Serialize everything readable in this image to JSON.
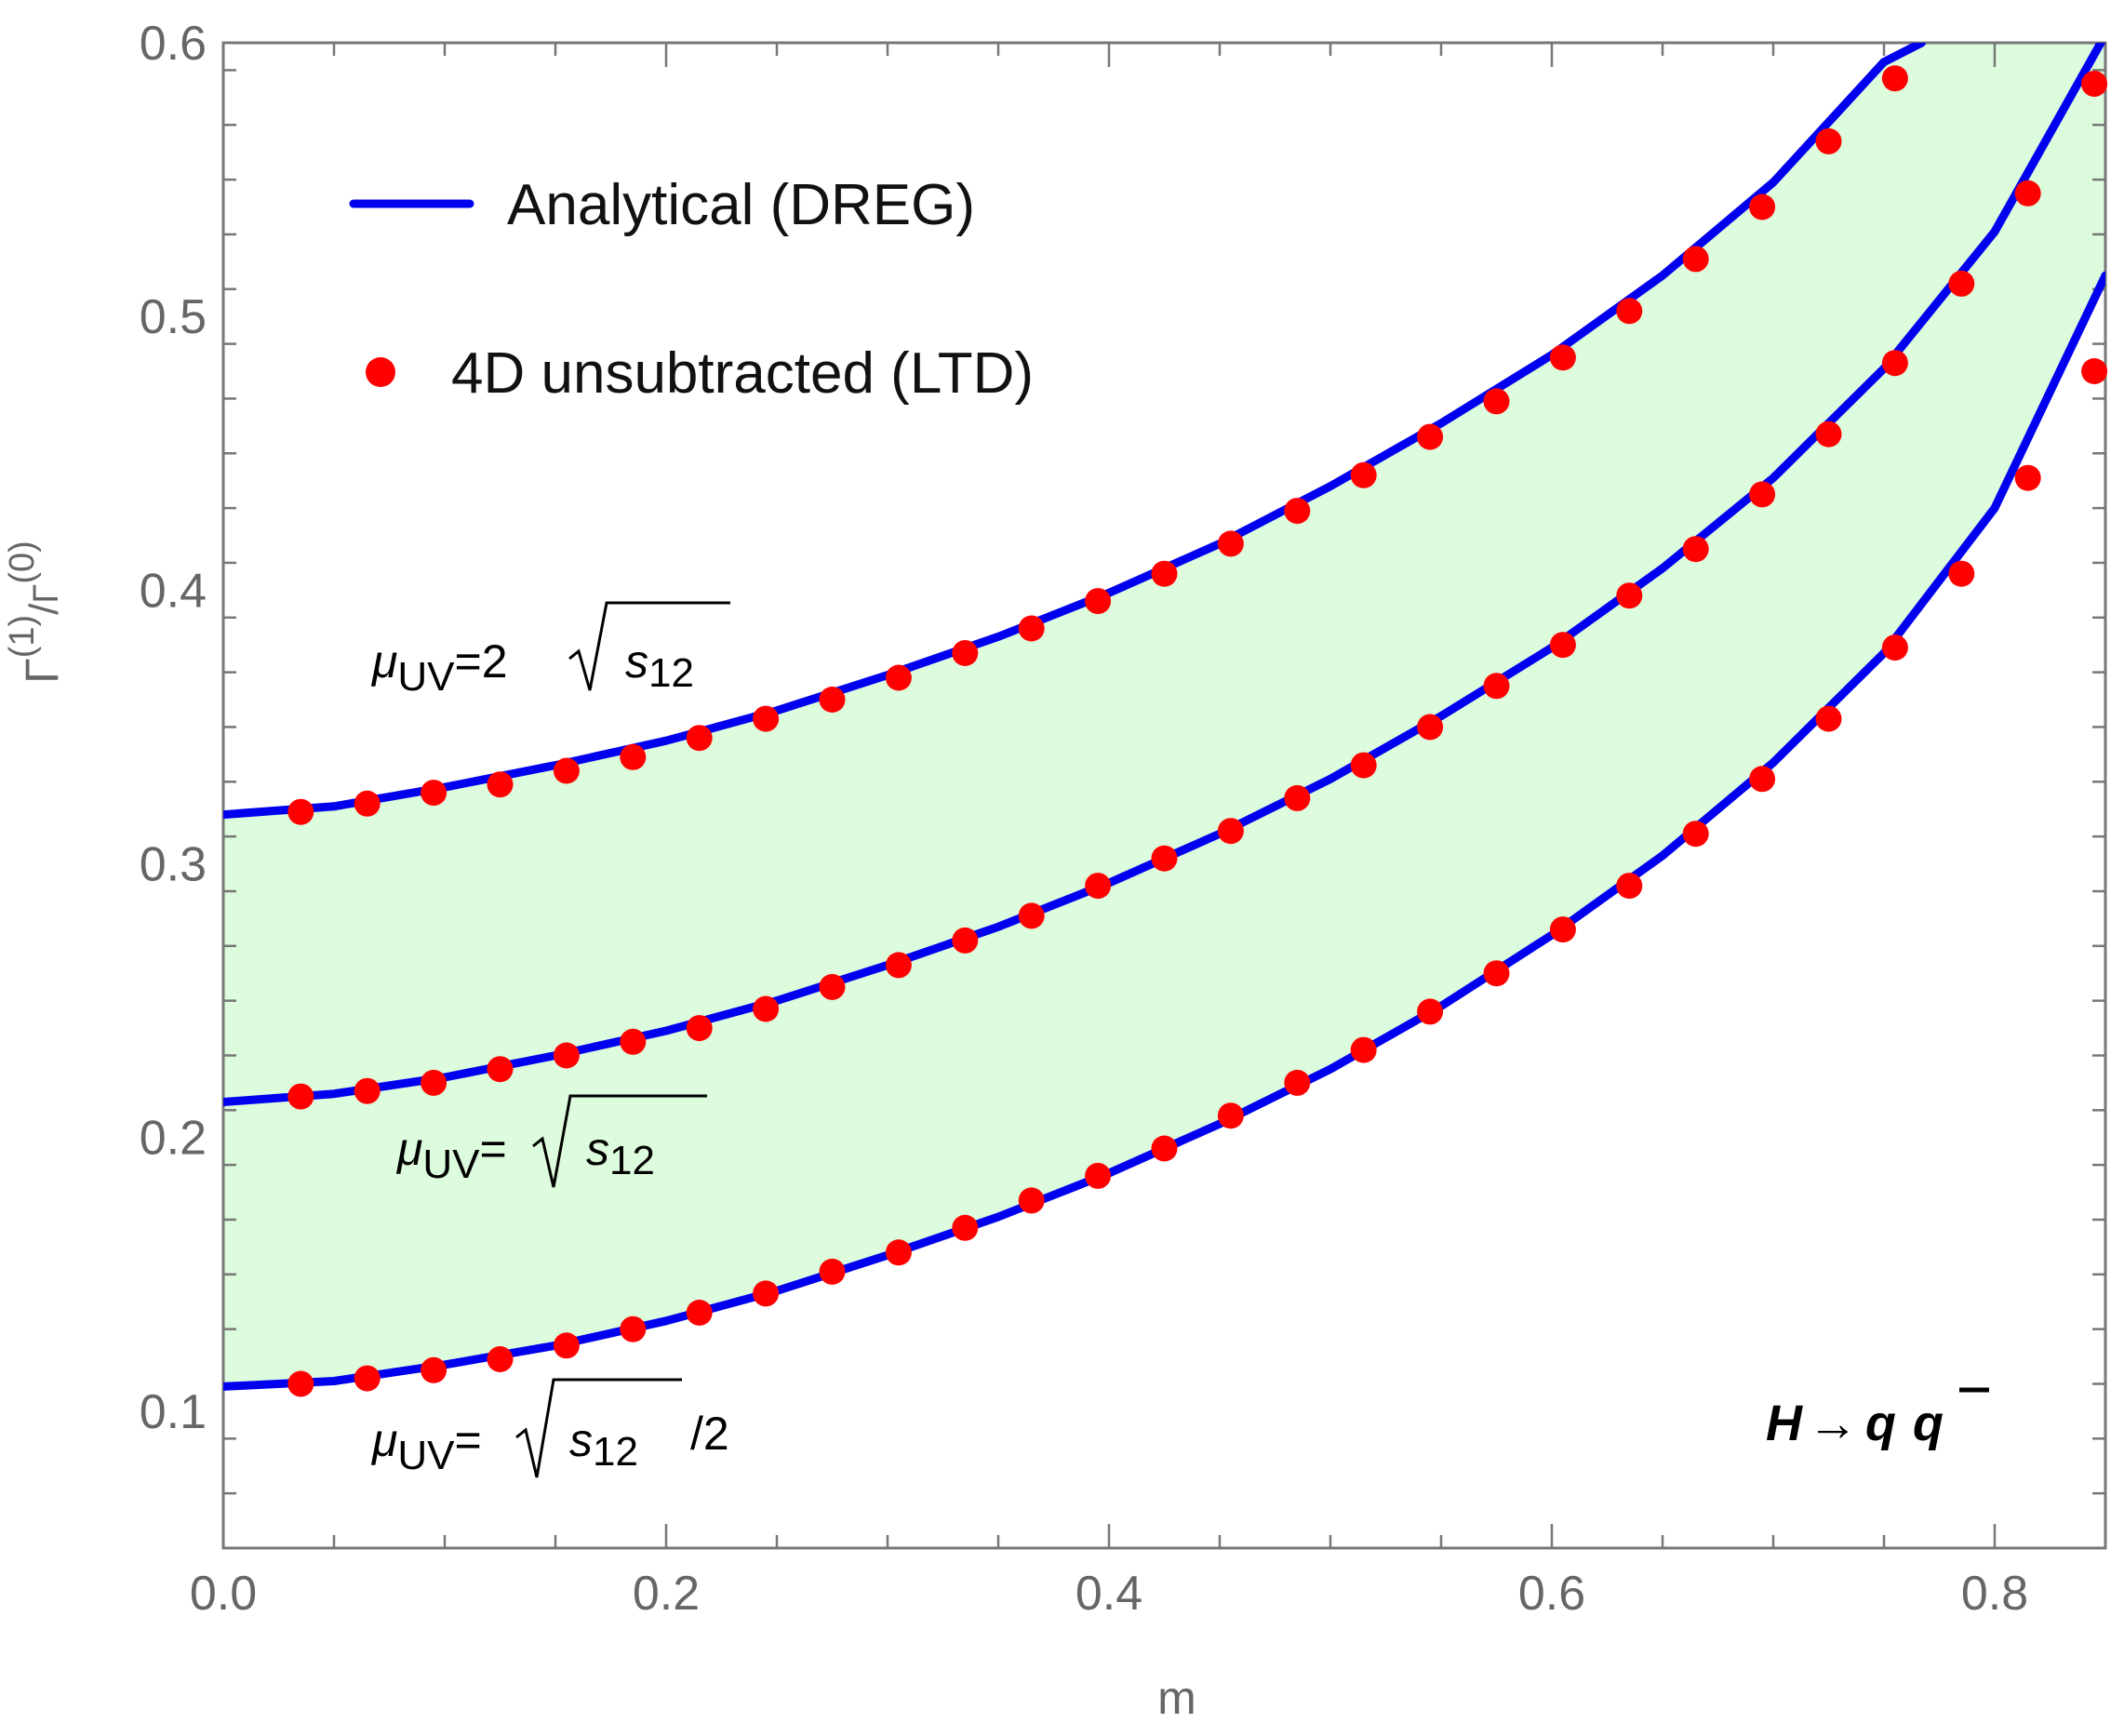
{
  "chart_data": {
    "type": "line",
    "xlabel": "m",
    "ylabel_base": "Γ",
    "ylabel_sup_num": "(1)",
    "ylabel_sep": "/",
    "ylabel_sup_den": "(0)",
    "xlim": [
      0.0,
      0.85
    ],
    "ylim": [
      0.05,
      0.6
    ],
    "x_ticks": [
      0.0,
      0.2,
      0.4,
      0.6,
      0.8
    ],
    "x_tick_labels": [
      "0.0",
      "0.2",
      "0.4",
      "0.6",
      "0.8"
    ],
    "y_ticks": [
      0.1,
      0.2,
      0.3,
      0.4,
      0.5,
      0.6
    ],
    "y_tick_labels": [
      "0.1",
      "0.2",
      "0.3",
      "0.4",
      "0.5",
      "0.6"
    ],
    "legend": {
      "line_label": "Analytical (DREG)",
      "marker_label": "4D unsubtracted (LTD)",
      "placement": "top-left"
    },
    "band_color": "#ddfbdd",
    "line_color": "#0000ee",
    "marker_color": "#ff0000",
    "process_label": "H → q q̄",
    "process_parts": {
      "H": "H",
      "arrow": "→",
      "q": "q",
      "qbar": "q"
    },
    "series": [
      {
        "name": "μUV=2√s12",
        "label_parts": {
          "mu": "μ",
          "sub": "UV",
          "eq": "=2",
          "s": "s",
          "s_sub": "12",
          "tail": ""
        },
        "curve_x": [
          0.0,
          0.05,
          0.1,
          0.15,
          0.2,
          0.25,
          0.3,
          0.35,
          0.4,
          0.45,
          0.5,
          0.55,
          0.6,
          0.65,
          0.7,
          0.75,
          0.767
        ],
        "curve_y": [
          0.318,
          0.321,
          0.328,
          0.336,
          0.345,
          0.356,
          0.369,
          0.383,
          0.399,
          0.417,
          0.438,
          0.461,
          0.486,
          0.515,
          0.549,
          0.593,
          0.6
        ],
        "points_x": [
          0.035,
          0.065,
          0.095,
          0.125,
          0.155,
          0.185,
          0.215,
          0.245,
          0.275,
          0.305,
          0.335,
          0.365,
          0.395,
          0.425,
          0.455,
          0.485,
          0.515,
          0.545,
          0.575,
          0.605,
          0.635,
          0.665,
          0.695,
          0.725,
          0.755
        ],
        "points_y": [
          0.319,
          0.322,
          0.326,
          0.329,
          0.334,
          0.339,
          0.346,
          0.353,
          0.36,
          0.368,
          0.377,
          0.386,
          0.396,
          0.406,
          0.417,
          0.429,
          0.442,
          0.456,
          0.469,
          0.485,
          0.502,
          0.521,
          0.54,
          0.564,
          0.587
        ]
      },
      {
        "name": "μUV=√s12",
        "label_parts": {
          "mu": "μ",
          "sub": "UV",
          "eq": "=",
          "s": "s",
          "s_sub": "12",
          "tail": ""
        },
        "curve_x": [
          0.0,
          0.05,
          0.1,
          0.15,
          0.2,
          0.25,
          0.3,
          0.35,
          0.4,
          0.45,
          0.5,
          0.55,
          0.6,
          0.65,
          0.7,
          0.75,
          0.8,
          0.85
        ],
        "curve_y": [
          0.213,
          0.216,
          0.222,
          0.23,
          0.239,
          0.25,
          0.263,
          0.277,
          0.293,
          0.311,
          0.331,
          0.354,
          0.379,
          0.408,
          0.441,
          0.481,
          0.531,
          0.603
        ],
        "points_x": [
          0.035,
          0.065,
          0.095,
          0.125,
          0.155,
          0.185,
          0.215,
          0.245,
          0.275,
          0.305,
          0.335,
          0.365,
          0.395,
          0.425,
          0.455,
          0.485,
          0.515,
          0.545,
          0.575,
          0.605,
          0.635,
          0.665,
          0.695,
          0.725,
          0.755,
          0.785,
          0.815,
          0.845
        ],
        "points_y": [
          0.215,
          0.217,
          0.22,
          0.225,
          0.23,
          0.235,
          0.24,
          0.247,
          0.255,
          0.263,
          0.272,
          0.281,
          0.292,
          0.302,
          0.312,
          0.324,
          0.336,
          0.35,
          0.365,
          0.38,
          0.398,
          0.415,
          0.435,
          0.457,
          0.483,
          0.512,
          0.545,
          0.585
        ]
      },
      {
        "name": "μUV=√s12/2",
        "label_parts": {
          "mu": "μ",
          "sub": "UV",
          "eq": "=",
          "s": "s",
          "s_sub": "12",
          "tail": "/2"
        },
        "curve_x": [
          0.0,
          0.05,
          0.1,
          0.15,
          0.2,
          0.25,
          0.3,
          0.35,
          0.4,
          0.45,
          0.5,
          0.55,
          0.6,
          0.65,
          0.7,
          0.75,
          0.8,
          0.85
        ],
        "curve_y": [
          0.109,
          0.111,
          0.117,
          0.124,
          0.133,
          0.144,
          0.157,
          0.171,
          0.187,
          0.205,
          0.225,
          0.248,
          0.274,
          0.303,
          0.337,
          0.377,
          0.43,
          0.515
        ],
        "points_x": [
          0.035,
          0.065,
          0.095,
          0.125,
          0.155,
          0.185,
          0.215,
          0.245,
          0.275,
          0.305,
          0.335,
          0.365,
          0.395,
          0.425,
          0.455,
          0.485,
          0.515,
          0.545,
          0.575,
          0.605,
          0.635,
          0.665,
          0.695,
          0.725,
          0.755,
          0.785,
          0.815,
          0.845
        ],
        "points_y": [
          0.11,
          0.112,
          0.115,
          0.119,
          0.124,
          0.13,
          0.136,
          0.143,
          0.151,
          0.158,
          0.167,
          0.177,
          0.186,
          0.196,
          0.208,
          0.22,
          0.232,
          0.246,
          0.26,
          0.276,
          0.292,
          0.311,
          0.331,
          0.353,
          0.379,
          0.406,
          0.441,
          0.48
        ]
      }
    ]
  }
}
